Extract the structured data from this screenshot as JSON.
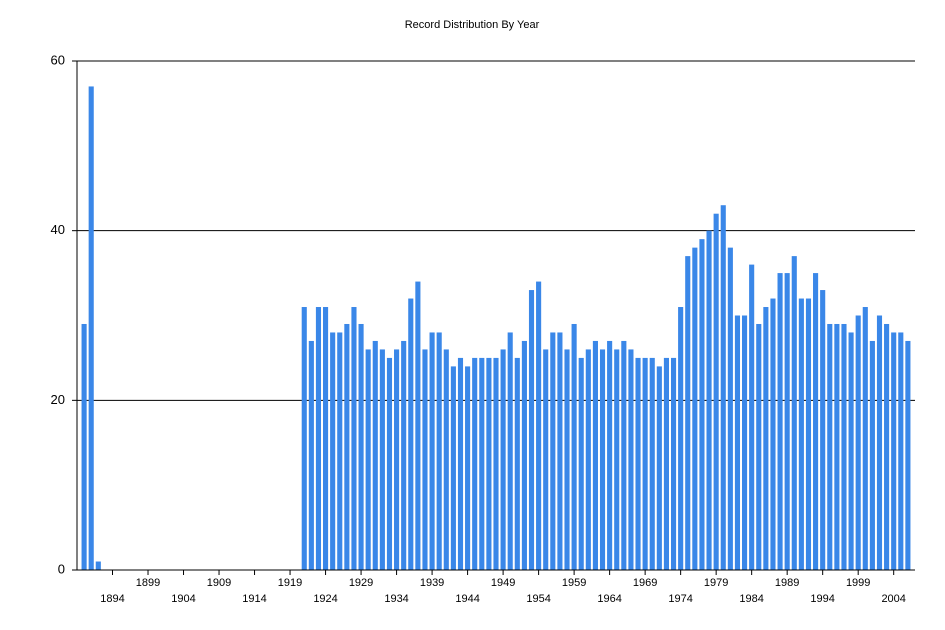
{
  "chart_data": {
    "type": "bar",
    "title": "Record Distribution By Year",
    "color": "#3a87e8",
    "grid": true,
    "x": [
      1890,
      1891,
      1892,
      1921,
      1922,
      1923,
      1924,
      1925,
      1926,
      1927,
      1928,
      1929,
      1930,
      1931,
      1932,
      1933,
      1934,
      1935,
      1936,
      1937,
      1938,
      1939,
      1940,
      1941,
      1942,
      1943,
      1944,
      1945,
      1946,
      1947,
      1948,
      1949,
      1950,
      1951,
      1952,
      1953,
      1954,
      1955,
      1956,
      1957,
      1958,
      1959,
      1960,
      1961,
      1962,
      1963,
      1964,
      1965,
      1966,
      1967,
      1968,
      1969,
      1970,
      1971,
      1972,
      1973,
      1974,
      1975,
      1976,
      1977,
      1978,
      1979,
      1980,
      1981,
      1982,
      1983,
      1984,
      1985,
      1986,
      1987,
      1988,
      1989,
      1990,
      1991,
      1992,
      1993,
      1994,
      1995,
      1996,
      1997,
      1998,
      1999,
      2000,
      2001,
      2002,
      2003,
      2004,
      2005,
      2006
    ],
    "values": [
      29,
      57,
      1,
      31,
      27,
      31,
      31,
      28,
      28,
      29,
      31,
      29,
      26,
      27,
      26,
      25,
      26,
      27,
      32,
      34,
      26,
      28,
      28,
      26,
      24,
      25,
      24,
      25,
      25,
      25,
      25,
      26,
      28,
      25,
      27,
      33,
      34,
      26,
      28,
      28,
      26,
      29,
      25,
      26,
      27,
      26,
      27,
      26,
      27,
      26,
      25,
      25,
      25,
      24,
      25,
      25,
      31,
      37,
      38,
      39,
      40,
      42,
      43,
      38,
      30,
      30,
      36,
      29,
      31,
      32,
      35,
      35,
      37,
      32,
      32,
      35,
      33,
      29,
      29,
      29,
      28,
      30,
      31,
      27,
      30,
      29,
      28,
      28,
      27
    ],
    "xlim": [
      1889,
      2007
    ],
    "xticks": [
      1894,
      1899,
      1904,
      1909,
      1914,
      1919,
      1924,
      1929,
      1934,
      1939,
      1944,
      1949,
      1954,
      1959,
      1964,
      1969,
      1974,
      1979,
      1984,
      1989,
      1994,
      1999,
      2004
    ],
    "ylim": [
      0,
      60
    ],
    "yticks": [
      0,
      20,
      40,
      60
    ]
  }
}
